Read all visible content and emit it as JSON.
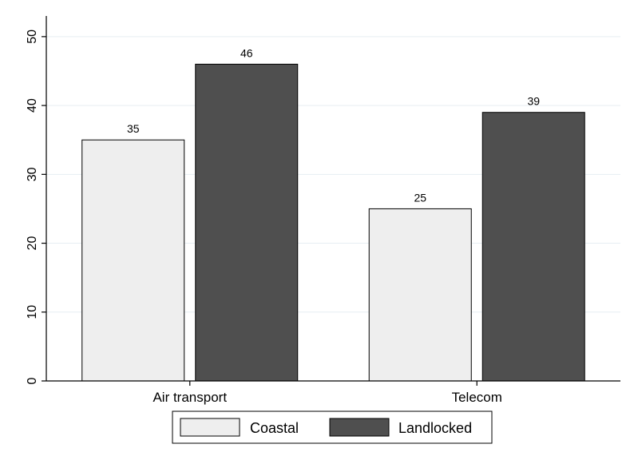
{
  "chart_data": {
    "type": "bar",
    "categories": [
      "Air transport",
      "Telecom"
    ],
    "series": [
      {
        "name": "Coastal",
        "values": [
          35,
          25
        ],
        "labels": [
          "35",
          "25"
        ],
        "color": "#eeeeee"
      },
      {
        "name": "Landlocked",
        "values": [
          46,
          39
        ],
        "labels": [
          "46",
          "39"
        ],
        "color": "#4f4f4f"
      }
    ],
    "y_ticks": [
      "0",
      "10",
      "20",
      "30",
      "40",
      "50"
    ],
    "ylim": [
      0,
      53
    ],
    "grid": true,
    "legend_position": "bottom",
    "plot_background": "#ffffff",
    "grid_color": "#e6eef2"
  }
}
